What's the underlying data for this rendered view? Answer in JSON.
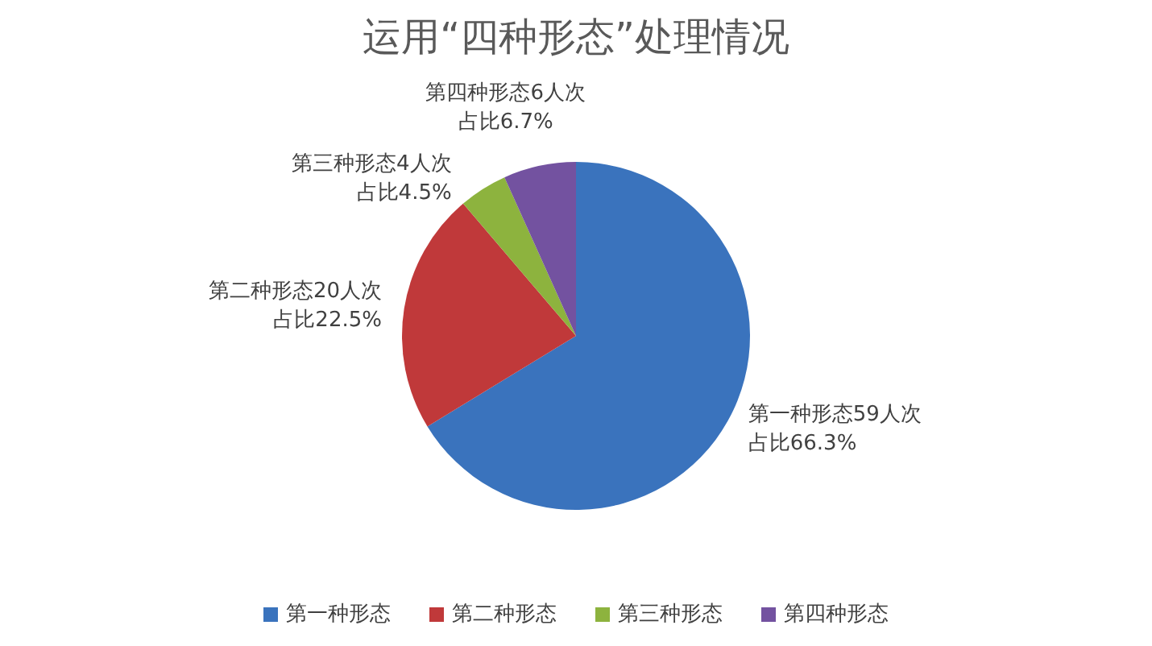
{
  "chart_data": {
    "type": "pie",
    "title": "运用“四种形态”处理情况",
    "categories": [
      "第一种形态",
      "第二种形态",
      "第三种形态",
      "第四种形态"
    ],
    "values": [
      59,
      20,
      4,
      6
    ],
    "colors": [
      "#3a73bd",
      "#c0393a",
      "#8db33e",
      "#7352a0"
    ],
    "value_labels": [
      "第一种形态59人次占比66.3%",
      "第二种形态20人次占比22.5%",
      "第三种形态4人次占比4.5%",
      "第四种形态6人次占比6.7%"
    ],
    "legend": "bottom"
  }
}
